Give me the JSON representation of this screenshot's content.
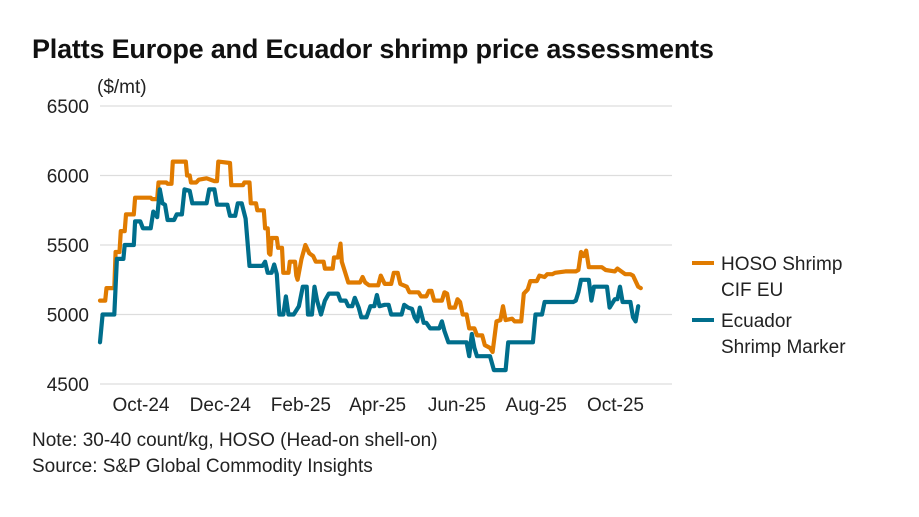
{
  "chart_data": {
    "type": "line",
    "title": "Platts Europe and Ecuador shrimp price assessments",
    "ylabel": "($/mt)",
    "xlabel": "",
    "ylim": [
      4500,
      6500
    ],
    "yticks": [
      6500,
      6000,
      5500,
      5000,
      4500
    ],
    "xlim": [
      "2024-09-01",
      "2025-11-15"
    ],
    "xticks": [
      {
        "label": "Oct-24",
        "date": "2024-10-01"
      },
      {
        "label": "Dec-24",
        "date": "2024-12-01"
      },
      {
        "label": "Feb-25",
        "date": "2025-02-01"
      },
      {
        "label": "Apr-25",
        "date": "2025-04-01"
      },
      {
        "label": "Jun-25",
        "date": "2025-06-01"
      },
      {
        "label": "Aug-25",
        "date": "2025-08-01"
      },
      {
        "label": "Oct-25",
        "date": "2025-10-01"
      }
    ],
    "grid": true,
    "legend_position": "right",
    "series": [
      {
        "name": "HOSO Shrimp CIF EU",
        "color": "#E07B00",
        "points": [
          [
            "2024-09-01",
            5100
          ],
          [
            "2024-09-05",
            5100
          ],
          [
            "2024-09-06",
            5190
          ],
          [
            "2024-09-12",
            5190
          ],
          [
            "2024-09-13",
            5450
          ],
          [
            "2024-09-16",
            5450
          ],
          [
            "2024-09-17",
            5600
          ],
          [
            "2024-09-20",
            5600
          ],
          [
            "2024-09-21",
            5720
          ],
          [
            "2024-09-27",
            5720
          ],
          [
            "2024-09-28",
            5840
          ],
          [
            "2024-10-10",
            5840
          ],
          [
            "2024-10-11",
            5830
          ],
          [
            "2024-10-15",
            5830
          ],
          [
            "2024-10-16",
            5950
          ],
          [
            "2024-10-22",
            5950
          ],
          [
            "2024-10-23",
            5940
          ],
          [
            "2024-10-26",
            5940
          ],
          [
            "2024-10-27",
            6100
          ],
          [
            "2024-11-06",
            6100
          ],
          [
            "2024-11-07",
            6000
          ],
          [
            "2024-11-09",
            6000
          ],
          [
            "2024-11-10",
            5950
          ],
          [
            "2024-11-14",
            5950
          ],
          [
            "2024-11-16",
            5970
          ],
          [
            "2024-11-22",
            5980
          ],
          [
            "2024-11-28",
            5960
          ],
          [
            "2024-11-30",
            5960
          ],
          [
            "2024-12-01",
            6100
          ],
          [
            "2024-12-10",
            6090
          ],
          [
            "2024-12-11",
            5930
          ],
          [
            "2024-12-20",
            5930
          ],
          [
            "2024-12-21",
            5950
          ],
          [
            "2024-12-25",
            5950
          ],
          [
            "2024-12-26",
            5800
          ],
          [
            "2024-12-30",
            5800
          ],
          [
            "2024-12-31",
            5750
          ],
          [
            "2025-01-05",
            5750
          ],
          [
            "2025-01-06",
            5620
          ],
          [
            "2025-01-08",
            5620
          ],
          [
            "2025-01-09",
            5440
          ],
          [
            "2025-01-10",
            5430
          ],
          [
            "2025-01-11",
            5550
          ],
          [
            "2025-01-15",
            5550
          ],
          [
            "2025-01-16",
            5480
          ],
          [
            "2025-01-19",
            5480
          ],
          [
            "2025-01-20",
            5300
          ],
          [
            "2025-01-24",
            5300
          ],
          [
            "2025-01-25",
            5380
          ],
          [
            "2025-01-29",
            5380
          ],
          [
            "2025-01-30",
            5280
          ],
          [
            "2025-01-31",
            5250
          ],
          [
            "2025-02-03",
            5400
          ],
          [
            "2025-02-06",
            5500
          ],
          [
            "2025-02-09",
            5440
          ],
          [
            "2025-02-12",
            5420
          ],
          [
            "2025-02-14",
            5380
          ],
          [
            "2025-02-20",
            5380
          ],
          [
            "2025-02-21",
            5330
          ],
          [
            "2025-02-27",
            5330
          ],
          [
            "2025-02-28",
            5410
          ],
          [
            "2025-03-03",
            5410
          ],
          [
            "2025-03-05",
            5510
          ],
          [
            "2025-03-06",
            5380
          ],
          [
            "2025-03-08",
            5320
          ],
          [
            "2025-03-11",
            5230
          ],
          [
            "2025-03-20",
            5230
          ],
          [
            "2025-03-22",
            5270
          ],
          [
            "2025-03-24",
            5230
          ],
          [
            "2025-03-27",
            5210
          ],
          [
            "2025-04-03",
            5210
          ],
          [
            "2025-04-05",
            5280
          ],
          [
            "2025-04-08",
            5220
          ],
          [
            "2025-04-13",
            5220
          ],
          [
            "2025-04-15",
            5300
          ],
          [
            "2025-04-18",
            5300
          ],
          [
            "2025-04-20",
            5220
          ],
          [
            "2025-04-25",
            5200
          ],
          [
            "2025-04-27",
            5160
          ],
          [
            "2025-05-04",
            5160
          ],
          [
            "2025-05-06",
            5130
          ],
          [
            "2025-05-10",
            5130
          ],
          [
            "2025-05-12",
            5170
          ],
          [
            "2025-05-14",
            5170
          ],
          [
            "2025-05-16",
            5100
          ],
          [
            "2025-05-22",
            5100
          ],
          [
            "2025-05-24",
            5160
          ],
          [
            "2025-05-26",
            5150
          ],
          [
            "2025-05-28",
            5050
          ],
          [
            "2025-06-01",
            5050
          ],
          [
            "2025-06-03",
            5110
          ],
          [
            "2025-06-05",
            5090
          ],
          [
            "2025-06-07",
            5000
          ],
          [
            "2025-06-10",
            5000
          ],
          [
            "2025-06-12",
            4900
          ],
          [
            "2025-06-16",
            4900
          ],
          [
            "2025-06-18",
            4850
          ],
          [
            "2025-06-22",
            4850
          ],
          [
            "2025-06-24",
            4780
          ],
          [
            "2025-06-28",
            4760
          ],
          [
            "2025-06-30",
            4730
          ],
          [
            "2025-07-03",
            4950
          ],
          [
            "2025-07-06",
            4960
          ],
          [
            "2025-07-08",
            5060
          ],
          [
            "2025-07-10",
            4960
          ],
          [
            "2025-07-15",
            4970
          ],
          [
            "2025-07-17",
            4950
          ],
          [
            "2025-07-22",
            4950
          ],
          [
            "2025-07-24",
            5150
          ],
          [
            "2025-07-27",
            5180
          ],
          [
            "2025-07-29",
            5240
          ],
          [
            "2025-08-03",
            5240
          ],
          [
            "2025-08-05",
            5280
          ],
          [
            "2025-08-09",
            5270
          ],
          [
            "2025-08-11",
            5290
          ],
          [
            "2025-08-15",
            5290
          ],
          [
            "2025-08-17",
            5300
          ],
          [
            "2025-08-25",
            5310
          ],
          [
            "2025-09-02",
            5310
          ],
          [
            "2025-09-04",
            5320
          ],
          [
            "2025-09-06",
            5450
          ],
          [
            "2025-09-08",
            5420
          ],
          [
            "2025-09-10",
            5460
          ],
          [
            "2025-09-12",
            5340
          ],
          [
            "2025-09-22",
            5340
          ],
          [
            "2025-09-25",
            5320
          ],
          [
            "2025-10-02",
            5310
          ],
          [
            "2025-10-04",
            5330
          ],
          [
            "2025-10-10",
            5290
          ],
          [
            "2025-10-14",
            5290
          ],
          [
            "2025-10-16",
            5280
          ],
          [
            "2025-10-20",
            5200
          ],
          [
            "2025-10-22",
            5190
          ]
        ]
      },
      {
        "name": "Ecuador Shrimp Marker",
        "color": "#006E8C",
        "points": [
          [
            "2024-09-01",
            4800
          ],
          [
            "2024-09-03",
            5000
          ],
          [
            "2024-09-12",
            5000
          ],
          [
            "2024-09-14",
            5400
          ],
          [
            "2024-09-19",
            5400
          ],
          [
            "2024-09-20",
            5500
          ],
          [
            "2024-09-27",
            5500
          ],
          [
            "2024-09-28",
            5670
          ],
          [
            "2024-10-02",
            5670
          ],
          [
            "2024-10-04",
            5620
          ],
          [
            "2024-10-10",
            5620
          ],
          [
            "2024-10-12",
            5740
          ],
          [
            "2024-10-15",
            5700
          ],
          [
            "2024-10-17",
            5900
          ],
          [
            "2024-10-19",
            5800
          ],
          [
            "2024-10-21",
            5790
          ],
          [
            "2024-10-23",
            5680
          ],
          [
            "2024-10-28",
            5680
          ],
          [
            "2024-10-30",
            5720
          ],
          [
            "2024-11-03",
            5720
          ],
          [
            "2024-11-05",
            5900
          ],
          [
            "2024-11-09",
            5890
          ],
          [
            "2024-11-11",
            5800
          ],
          [
            "2024-11-22",
            5800
          ],
          [
            "2024-11-24",
            5900
          ],
          [
            "2024-11-28",
            5900
          ],
          [
            "2024-11-30",
            5790
          ],
          [
            "2024-12-08",
            5790
          ],
          [
            "2024-12-10",
            5710
          ],
          [
            "2024-12-14",
            5710
          ],
          [
            "2024-12-16",
            5800
          ],
          [
            "2024-12-19",
            5800
          ],
          [
            "2024-12-22",
            5690
          ],
          [
            "2024-12-25",
            5350
          ],
          [
            "2025-01-04",
            5350
          ],
          [
            "2025-01-06",
            5380
          ],
          [
            "2025-01-08",
            5300
          ],
          [
            "2025-01-11",
            5300
          ],
          [
            "2025-01-13",
            5360
          ],
          [
            "2025-01-15",
            5290
          ],
          [
            "2025-01-17",
            5000
          ],
          [
            "2025-01-20",
            5000
          ],
          [
            "2025-01-22",
            5130
          ],
          [
            "2025-01-24",
            5000
          ],
          [
            "2025-01-28",
            5000
          ],
          [
            "2025-02-01",
            5060
          ],
          [
            "2025-02-04",
            5200
          ],
          [
            "2025-02-07",
            5200
          ],
          [
            "2025-02-08",
            5000
          ],
          [
            "2025-02-11",
            5000
          ],
          [
            "2025-02-13",
            5200
          ],
          [
            "2025-02-15",
            5100
          ],
          [
            "2025-02-18",
            5000
          ],
          [
            "2025-02-21",
            5100
          ],
          [
            "2025-02-24",
            5150
          ],
          [
            "2025-03-03",
            5150
          ],
          [
            "2025-03-05",
            5100
          ],
          [
            "2025-03-09",
            5100
          ],
          [
            "2025-03-11",
            5060
          ],
          [
            "2025-03-14",
            5060
          ],
          [
            "2025-03-16",
            5120
          ],
          [
            "2025-03-19",
            5050
          ],
          [
            "2025-03-21",
            4980
          ],
          [
            "2025-03-25",
            4980
          ],
          [
            "2025-03-28",
            5060
          ],
          [
            "2025-03-31",
            5060
          ],
          [
            "2025-04-02",
            5140
          ],
          [
            "2025-04-04",
            5060
          ],
          [
            "2025-04-08",
            5070
          ],
          [
            "2025-04-11",
            5070
          ],
          [
            "2025-04-13",
            5000
          ],
          [
            "2025-04-21",
            5000
          ],
          [
            "2025-04-23",
            5070
          ],
          [
            "2025-04-26",
            5050
          ],
          [
            "2025-04-29",
            5040
          ],
          [
            "2025-05-01",
            4980
          ],
          [
            "2025-05-03",
            4950
          ],
          [
            "2025-05-05",
            5050
          ],
          [
            "2025-05-08",
            4940
          ],
          [
            "2025-05-10",
            4940
          ],
          [
            "2025-05-13",
            4900
          ],
          [
            "2025-05-20",
            4900
          ],
          [
            "2025-05-22",
            4950
          ],
          [
            "2025-05-24",
            4880
          ],
          [
            "2025-05-27",
            4800
          ],
          [
            "2025-06-10",
            4800
          ],
          [
            "2025-06-12",
            4700
          ],
          [
            "2025-06-14",
            4860
          ],
          [
            "2025-06-16",
            4760
          ],
          [
            "2025-06-18",
            4700
          ],
          [
            "2025-06-28",
            4700
          ],
          [
            "2025-07-01",
            4600
          ],
          [
            "2025-07-10",
            4600
          ],
          [
            "2025-07-12",
            4800
          ],
          [
            "2025-07-31",
            4800
          ],
          [
            "2025-08-02",
            5000
          ],
          [
            "2025-08-07",
            5000
          ],
          [
            "2025-08-09",
            5090
          ],
          [
            "2025-08-31",
            5090
          ],
          [
            "2025-09-02",
            5100
          ],
          [
            "2025-09-04",
            5160
          ],
          [
            "2025-09-06",
            5250
          ],
          [
            "2025-09-12",
            5250
          ],
          [
            "2025-09-14",
            5100
          ],
          [
            "2025-09-16",
            5200
          ],
          [
            "2025-09-26",
            5200
          ],
          [
            "2025-09-28",
            5050
          ],
          [
            "2025-10-02",
            5110
          ],
          [
            "2025-10-04",
            5110
          ],
          [
            "2025-10-06",
            5200
          ],
          [
            "2025-10-08",
            5090
          ],
          [
            "2025-10-14",
            5090
          ],
          [
            "2025-10-16",
            4980
          ],
          [
            "2025-10-18",
            4950
          ],
          [
            "2025-10-20",
            5060
          ]
        ]
      }
    ]
  },
  "header": {
    "title": "Platts Europe and Ecuador shrimp price assessments",
    "unit": "($/mt)"
  },
  "legend": [
    {
      "lines": [
        "HOSO Shrimp",
        "CIF EU"
      ],
      "color": "#E07B00"
    },
    {
      "lines": [
        "Ecuador",
        "Shrimp Marker"
      ],
      "color": "#006E8C"
    }
  ],
  "footer": {
    "note": "Note: 30-40 count/kg, HOSO (Head-on shell-on)",
    "source": "Source: S&P Global Commodity Insights"
  }
}
